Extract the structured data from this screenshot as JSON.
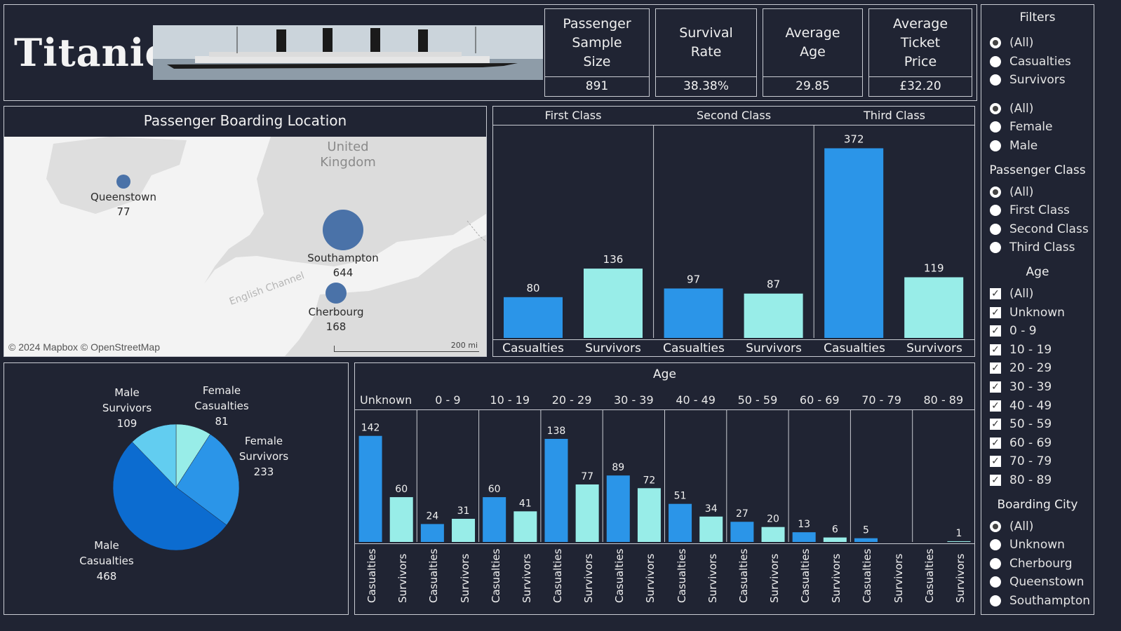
{
  "header": {
    "title": "Titanic",
    "kpis": [
      {
        "title": "Passenger\nSample\nSize",
        "value": "891"
      },
      {
        "title": "Survival\nRate",
        "value": "38.38%"
      },
      {
        "title": "Average\nAge",
        "value": "29.85"
      },
      {
        "title": "Average\nTicket\nPrice",
        "value": "£32.20"
      }
    ]
  },
  "map": {
    "title": "Passenger Boarding Location",
    "country_label": "United\nKingdom",
    "channel_label": "English Channel",
    "attribution": "© 2024 Mapbox © OpenStreetMap",
    "scale_label": "200 mi",
    "cities": [
      {
        "name": "Queenstown",
        "count": 77
      },
      {
        "name": "Southampton",
        "count": 644
      },
      {
        "name": "Cherbourg",
        "count": 168
      }
    ]
  },
  "class_chart": {
    "type": "bar",
    "panels": [
      "First Class",
      "Second Class",
      "Third Class"
    ],
    "categories": [
      "Casualties",
      "Survivors"
    ],
    "values": [
      [
        80,
        136
      ],
      [
        97,
        87
      ],
      [
        372,
        119
      ]
    ],
    "colors": {
      "Casualties": "#2b95e8",
      "Survivors": "#98ede8"
    }
  },
  "pie": {
    "slices": [
      {
        "label": "Female\nCasualties",
        "value": 81,
        "color": "#98ede8"
      },
      {
        "label": "Female\nSurvivors",
        "value": 233,
        "color": "#2b95e8"
      },
      {
        "label": "Male\nCasualties",
        "value": 468,
        "color": "#0c6cd0"
      },
      {
        "label": "Male\nSurvivors",
        "value": 109,
        "color": "#62cdf0"
      }
    ]
  },
  "age_chart": {
    "title": "Age",
    "groups": [
      "Unknown",
      "0 - 9",
      "10 - 19",
      "20 - 29",
      "30 - 39",
      "40 - 49",
      "50 - 59",
      "60 - 69",
      "70 - 79",
      "80 - 89"
    ],
    "categories": [
      "Casualties",
      "Survivors"
    ],
    "casualties": [
      142,
      24,
      60,
      138,
      89,
      51,
      27,
      13,
      5,
      null
    ],
    "survivors": [
      60,
      31,
      41,
      77,
      72,
      34,
      20,
      6,
      null,
      1
    ]
  },
  "chart_data": [
    {
      "type": "bar",
      "title": "",
      "categories": [
        "First Class Casualties",
        "First Class Survivors",
        "Second Class Casualties",
        "Second Class Survivors",
        "Third Class Casualties",
        "Third Class Survivors"
      ],
      "values": [
        80,
        136,
        97,
        87,
        372,
        119
      ]
    },
    {
      "type": "pie",
      "categories": [
        "Female Casualties",
        "Female Survivors",
        "Male Casualties",
        "Male Survivors"
      ],
      "values": [
        81,
        233,
        468,
        109
      ]
    },
    {
      "type": "bar",
      "title": "Age",
      "categories": [
        "Unknown",
        "0 - 9",
        "10 - 19",
        "20 - 29",
        "30 - 39",
        "40 - 49",
        "50 - 59",
        "60 - 69",
        "70 - 79",
        "80 - 89"
      ],
      "series": [
        {
          "name": "Casualties",
          "values": [
            142,
            24,
            60,
            138,
            89,
            51,
            27,
            13,
            5,
            null
          ]
        },
        {
          "name": "Survivors",
          "values": [
            60,
            31,
            41,
            77,
            72,
            34,
            20,
            6,
            null,
            1
          ]
        }
      ]
    }
  ],
  "filters": {
    "title": "Filters",
    "status": [
      "(All)",
      "Casualties",
      "Survivors"
    ],
    "gender": [
      "(All)",
      "Female",
      "Male"
    ],
    "class_title": "Passenger Class",
    "class": [
      "(All)",
      "First Class",
      "Second Class",
      "Third Class"
    ],
    "age_title": "Age",
    "age": [
      "(All)",
      "Unknown",
      "0 - 9",
      "10 - 19",
      "20 - 29",
      "30 - 39",
      "40 - 49",
      "50 - 59",
      "60 - 69",
      "70 - 79",
      "80 - 89"
    ],
    "city_title": "Boarding City",
    "city": [
      "(All)",
      "Unknown",
      "Cherbourg",
      "Queenstown",
      "Southampton"
    ]
  }
}
